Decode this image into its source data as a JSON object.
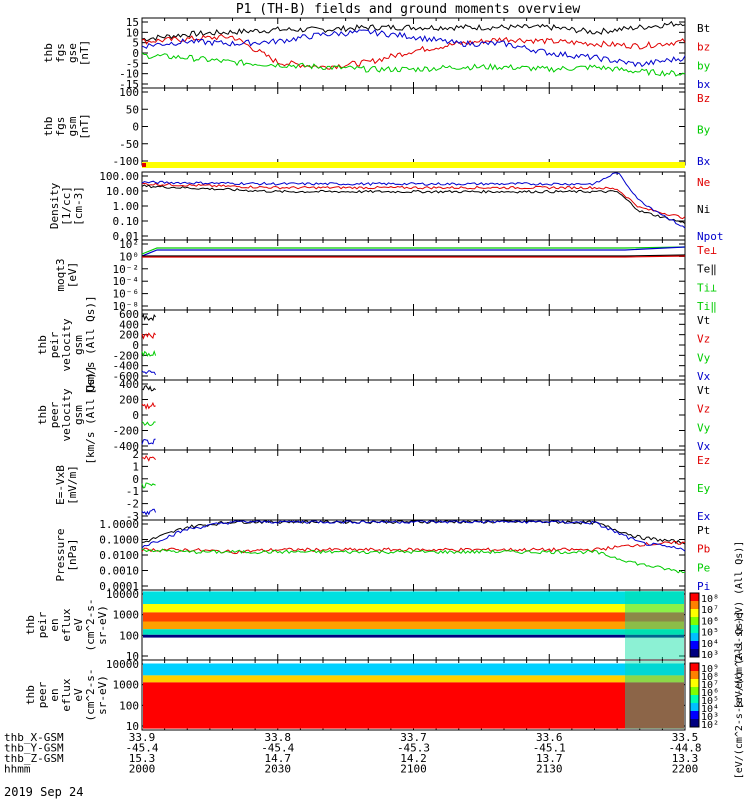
{
  "title": "P1 (TH-B) fields and ground moments overview",
  "date_label": "2019 Sep 24",
  "colors": {
    "black": "#000000",
    "red": "#e00000",
    "green": "#00cc00",
    "blue": "#0000cc",
    "yellow": "#ffff00",
    "cyan": "#00e0e0"
  },
  "panels": [
    {
      "id": "fgs-gse",
      "ylabel": [
        "thb",
        "fgs",
        "gse",
        "[nT]"
      ],
      "yticks": [
        "15",
        "10",
        "5",
        "0",
        "-5",
        "-10",
        "-15"
      ],
      "legend": [
        {
          "label": "Bt",
          "color": "black"
        },
        {
          "label": "bz",
          "color": "red"
        },
        {
          "label": "by",
          "color": "green"
        },
        {
          "label": "bx",
          "color": "blue"
        }
      ]
    },
    {
      "id": "fgs-gsm",
      "ylabel": [
        "thb",
        "fgs",
        "gsm",
        "[nT]"
      ],
      "yticks": [
        "100",
        "50",
        "0",
        "-50",
        "-100"
      ],
      "legend": [
        {
          "label": "Bz",
          "color": "red"
        },
        {
          "label": "By",
          "color": "green"
        },
        {
          "label": "Bx",
          "color": "blue"
        }
      ]
    },
    {
      "id": "density",
      "ylabel": [
        "Density",
        "[1/cc]",
        "[cm-3]"
      ],
      "yticks": [
        "100.00",
        "10.00",
        "1.00",
        "0.10",
        "0.01"
      ],
      "legend": [
        {
          "label": "Ne",
          "color": "red"
        },
        {
          "label": "Ni",
          "color": "black"
        },
        {
          "label": "Npot",
          "color": "blue"
        }
      ]
    },
    {
      "id": "temperature",
      "ylabel": [
        "moqt3",
        "[eV]"
      ],
      "yticks": [
        "10²",
        "10⁰",
        "10⁻²",
        "10⁻⁴",
        "10⁻⁶",
        "10⁻⁸"
      ],
      "legend": [
        {
          "label": "Te⊥",
          "color": "red"
        },
        {
          "label": "Te‖",
          "color": "black"
        },
        {
          "label": "Ti⊥",
          "color": "green"
        },
        {
          "label": "Ti‖",
          "color": "green"
        }
      ]
    },
    {
      "id": "peir-velocity",
      "ylabel": [
        "thb",
        "peir",
        "velocity",
        "gsm",
        "[km/s (All Qs)]"
      ],
      "yticks": [
        "600",
        "400",
        "200",
        "0",
        "-200",
        "-400",
        "-600"
      ],
      "legend": [
        {
          "label": "Vt",
          "color": "black"
        },
        {
          "label": "Vz",
          "color": "red"
        },
        {
          "label": "Vy",
          "color": "green"
        },
        {
          "label": "Vx",
          "color": "blue"
        }
      ]
    },
    {
      "id": "peer-velocity",
      "ylabel": [
        "thb",
        "peer",
        "velocity",
        "gsm",
        "[km/s (All Qs)]"
      ],
      "yticks": [
        "400",
        "200",
        "0",
        "-200",
        "-400"
      ],
      "legend": [
        {
          "label": "Vt",
          "color": "black"
        },
        {
          "label": "Vz",
          "color": "red"
        },
        {
          "label": "Vy",
          "color": "green"
        },
        {
          "label": "Vx",
          "color": "blue"
        }
      ]
    },
    {
      "id": "efield",
      "ylabel": [
        "E=-VxB",
        "[mV/m]"
      ],
      "yticks": [
        "2",
        "1",
        "0",
        "-1",
        "-2",
        "-3"
      ],
      "legend": [
        {
          "label": "Ez",
          "color": "red"
        },
        {
          "label": "Ey",
          "color": "green"
        },
        {
          "label": "Ex",
          "color": "blue"
        }
      ]
    },
    {
      "id": "pressure",
      "ylabel": [
        "Pressure",
        "[nPa]"
      ],
      "yticks": [
        "1.0000",
        "0.1000",
        "0.0100",
        "0.0010",
        "0.0001"
      ],
      "legend": [
        {
          "label": "Pt",
          "color": "black"
        },
        {
          "label": "Pb",
          "color": "red"
        },
        {
          "label": "Pe",
          "color": "green"
        },
        {
          "label": "Pi",
          "color": "blue"
        }
      ]
    },
    {
      "id": "peir-eflux",
      "ylabel": [
        "thb",
        "peir",
        "en",
        "eflux",
        "eV",
        "(cm^2-s-",
        "sr-eV)"
      ],
      "yticks": [
        "10000",
        "1000",
        "100",
        "10"
      ],
      "colorbar": {
        "ticks": [
          "10⁸",
          "10⁷",
          "10⁶",
          "10⁵",
          "10⁴",
          "10³"
        ],
        "label": "[eV/(cm^2-s-sr-eV) (All Qs)]"
      }
    },
    {
      "id": "peer-eflux",
      "ylabel": [
        "thb",
        "peer",
        "en",
        "eflux",
        "eV",
        "(cm^2-s-",
        "sr-eV)"
      ],
      "yticks": [
        "10000",
        "1000",
        "100",
        "10"
      ],
      "colorbar": {
        "ticks": [
          "10⁹",
          "10⁸",
          "10⁷",
          "10⁶",
          "10⁵",
          "10⁴",
          "10³",
          "10²"
        ],
        "label": "[eV/(cm^2-s-sr-eV) (All Qs)]"
      }
    }
  ],
  "xaxis_rows": [
    {
      "label": "thb_X-GSM",
      "values": [
        "33.9",
        "33.8",
        "33.7",
        "33.6",
        "33.5"
      ]
    },
    {
      "label": "thb_Y-GSM",
      "values": [
        "-45.4",
        "-45.4",
        "-45.3",
        "-45.1",
        "-44.8"
      ]
    },
    {
      "label": "thb_Z-GSM",
      "values": [
        "15.3",
        "14.7",
        "14.2",
        "13.7",
        "13.3"
      ]
    },
    {
      "label": "hhmm",
      "values": [
        "2000",
        "2030",
        "2100",
        "2130",
        "2200"
      ]
    }
  ],
  "chart_data": [
    {
      "type": "line",
      "title": "P1 (TH-B) fields and ground moments overview",
      "x_time_hhmm": [
        "2000",
        "2030",
        "2100",
        "2130",
        "2200"
      ],
      "ylabel": "thb fgs gse [nT]",
      "ylim": [
        -15,
        15
      ],
      "series": [
        {
          "name": "Bt",
          "x": [
            "2000",
            "2010",
            "2020",
            "2030",
            "2040",
            "2050",
            "2100",
            "2110",
            "2120",
            "2130",
            "2140",
            "2150",
            "2200"
          ],
          "values": [
            6,
            8,
            9,
            10,
            10,
            11,
            11,
            11,
            11,
            11,
            9,
            11,
            13
          ]
        },
        {
          "name": "bz",
          "x": [
            "2000",
            "2010",
            "2020",
            "2030",
            "2040",
            "2050",
            "2100",
            "2110",
            "2120",
            "2130",
            "2140",
            "2150",
            "2200"
          ],
          "values": [
            5,
            6,
            7,
            -4,
            -6,
            -4,
            1,
            4,
            6,
            5,
            4,
            3,
            5
          ]
        },
        {
          "name": "by",
          "x": [
            "2000",
            "2010",
            "2020",
            "2030",
            "2040",
            "2050",
            "2100",
            "2110",
            "2120",
            "2130",
            "2140",
            "2150",
            "2200"
          ],
          "values": [
            -1,
            -2,
            -4,
            -5,
            -6,
            -7,
            -7,
            -6,
            -6,
            -7,
            -6,
            -8,
            -9
          ]
        },
        {
          "name": "bx",
          "x": [
            "2000",
            "2010",
            "2020",
            "2030",
            "2040",
            "2050",
            "2100",
            "2110",
            "2120",
            "2130",
            "2140",
            "2150",
            "2200"
          ],
          "values": [
            3,
            5,
            4,
            5,
            8,
            9,
            7,
            4,
            4,
            0,
            -2,
            -5,
            -2
          ]
        }
      ]
    },
    {
      "type": "line",
      "ylabel": "Density [1/cc] [cm-3]",
      "yscale": "log",
      "ylim": [
        0.01,
        100
      ],
      "series": [
        {
          "name": "Ne",
          "x": [
            "2000",
            "2030",
            "2100",
            "2130",
            "2140",
            "2145",
            "2150",
            "2200"
          ],
          "values": [
            20,
            12,
            12,
            12,
            12,
            10,
            0.8,
            0.2
          ]
        },
        {
          "name": "Ni",
          "x": [
            "2000",
            "2030",
            "2100",
            "2130",
            "2140",
            "2145",
            "2150",
            "2200"
          ],
          "values": [
            15,
            7,
            7,
            7,
            7,
            7,
            0.5,
            0.1
          ]
        },
        {
          "name": "Npot",
          "x": [
            "2000",
            "2030",
            "2100",
            "2130",
            "2140",
            "2145",
            "2150",
            "2200"
          ],
          "values": [
            25,
            20,
            20,
            20,
            20,
            100,
            2,
            0.05
          ]
        }
      ]
    },
    {
      "type": "line",
      "ylabel": "Pressure [nPa]",
      "yscale": "log",
      "ylim": [
        0.0001,
        1.0
      ],
      "series": [
        {
          "name": "Pt",
          "x": [
            "2000",
            "2010",
            "2020",
            "2030",
            "2100",
            "2130",
            "2140",
            "2150",
            "2200"
          ],
          "values": [
            0.05,
            0.4,
            0.8,
            0.8,
            0.8,
            0.8,
            0.7,
            0.1,
            0.05
          ]
        },
        {
          "name": "Pb",
          "x": [
            "2000",
            "2010",
            "2020",
            "2030",
            "2100",
            "2130",
            "2140",
            "2150",
            "2200"
          ],
          "values": [
            0.02,
            0.02,
            0.015,
            0.02,
            0.02,
            0.02,
            0.02,
            0.04,
            0.05
          ]
        },
        {
          "name": "Pe",
          "x": [
            "2000",
            "2010",
            "2020",
            "2030",
            "2100",
            "2130",
            "2140",
            "2150",
            "2200"
          ],
          "values": [
            0.02,
            0.015,
            0.015,
            0.015,
            0.015,
            0.015,
            0.015,
            0.003,
            0.001
          ]
        },
        {
          "name": "Pi",
          "x": [
            "2000",
            "2010",
            "2020",
            "2030",
            "2100",
            "2130",
            "2140",
            "2150",
            "2200"
          ],
          "values": [
            0.03,
            0.3,
            0.8,
            0.8,
            0.8,
            0.8,
            0.7,
            0.05,
            0.02
          ]
        }
      ]
    }
  ]
}
